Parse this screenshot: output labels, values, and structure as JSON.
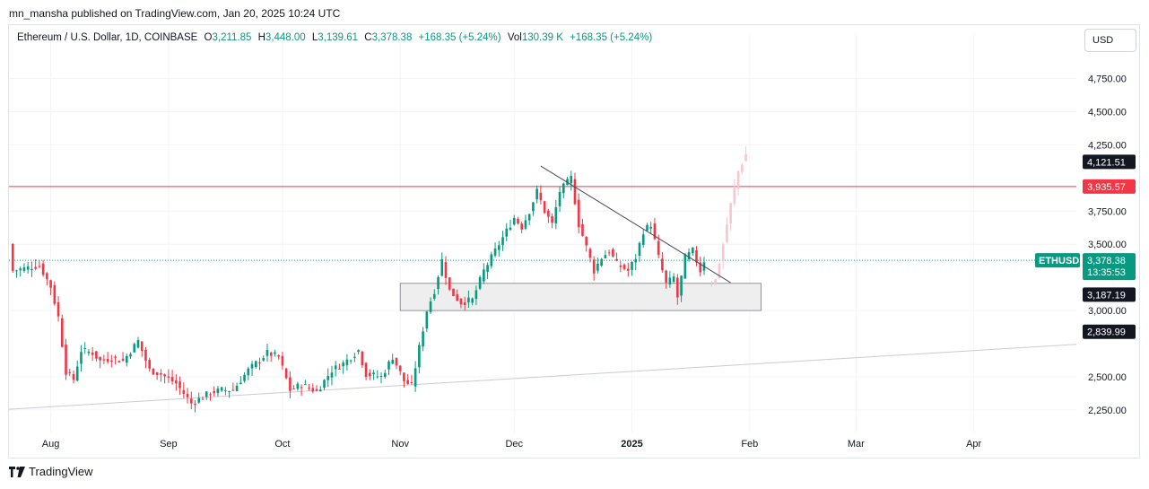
{
  "header": {
    "published": "mn_mansha published on TradingView.com, Jan 20, 2025 10:24 UTC"
  },
  "symbol": {
    "name": "Ethereum / U.S. Dollar, 1D, COINBASE",
    "open_label": "O",
    "open": "3,211.85",
    "high_label": "H",
    "high": "3,448.00",
    "low_label": "L",
    "low": "3,139.61",
    "close_label": "C",
    "close": "3,378.38",
    "change": "+168.35 (+5.24%)",
    "vol_label": "Vol",
    "vol": "130.39 K",
    "vol_change": "+168.35 (+5.24%)"
  },
  "currency": {
    "label": "USD"
  },
  "footer": {
    "brand": "TradingView"
  },
  "colors": {
    "up": "#089981",
    "down": "#f23645",
    "projection": "#f7c6d0",
    "resistance": "#f23645",
    "trendline": "#4a4e5a",
    "support_trend": "#c9ccd4",
    "zone_fill": "#eeeeee",
    "zone_border": "#787b86",
    "current_price": "#089981",
    "dark_label": "#131722"
  },
  "chart_data": {
    "type": "candlestick",
    "symbol": "ETHUSD",
    "x_axis": {
      "start": "2024-07-21",
      "end": "2025-04-28",
      "ticks": [
        {
          "date": "2024-08-01",
          "label": "Aug"
        },
        {
          "date": "2024-09-01",
          "label": "Sep"
        },
        {
          "date": "2024-10-01",
          "label": "Oct"
        },
        {
          "date": "2024-11-01",
          "label": "Nov"
        },
        {
          "date": "2024-12-01",
          "label": "Dec"
        },
        {
          "date": "2025-01-01",
          "label": "2025"
        },
        {
          "date": "2025-02-01",
          "label": "Feb"
        },
        {
          "date": "2025-03-01",
          "label": "Mar"
        },
        {
          "date": "2025-04-01",
          "label": "Apr"
        }
      ]
    },
    "y_axis": {
      "min": 2080,
      "max": 4950,
      "ticks": [
        {
          "value": 4750,
          "label": "4,750.00"
        },
        {
          "value": 4500,
          "label": "4,500.00"
        },
        {
          "value": 4250,
          "label": "4,250.00"
        },
        {
          "value": 3750,
          "label": "3,750.00"
        },
        {
          "value": 3500,
          "label": "3,500.00"
        },
        {
          "value": 3000,
          "label": "3,000.00"
        },
        {
          "value": 2500,
          "label": "2,500.00"
        },
        {
          "value": 2250,
          "label": "2,250.00"
        }
      ]
    },
    "price_labels": [
      {
        "value": 4121.51,
        "label": "4,121.51",
        "style": "dark"
      },
      {
        "value": 3935.57,
        "label": "3,935.57",
        "style": "red"
      },
      {
        "value": 3187.19,
        "label": "3,187.19",
        "style": "dark"
      },
      {
        "value": 2839.99,
        "label": "2,839.99",
        "style": "dark"
      }
    ],
    "current_price": {
      "value": 3378.38,
      "label": "3,378.38",
      "countdown": "13:35:53",
      "symbol_tag": "ETHUSD"
    },
    "resistance_line": {
      "value": 3935.57
    },
    "trendline": {
      "from": {
        "date": "2024-12-08",
        "value": 4090
      },
      "to": {
        "date": "2025-01-27",
        "value": 3210
      }
    },
    "support_trendline": {
      "from": {
        "date": "2024-07-21",
        "value": 2255
      },
      "to": {
        "date": "2025-04-28",
        "value": 2745
      }
    },
    "zone": {
      "from_date": "2024-11-01",
      "to_date": "2025-02-04",
      "top": 3205,
      "bottom": 3000
    },
    "close_path": [
      [
        "2024-07-21",
        3500
      ],
      [
        "2024-07-22",
        3300
      ],
      [
        "2024-07-27",
        3330
      ],
      [
        "2024-07-29",
        3340
      ],
      [
        "2024-08-01",
        3180
      ],
      [
        "2024-08-03",
        2950
      ],
      [
        "2024-08-05",
        2540
      ],
      [
        "2024-08-07",
        2480
      ],
      [
        "2024-08-09",
        2700
      ],
      [
        "2024-08-12",
        2680
      ],
      [
        "2024-08-14",
        2620
      ],
      [
        "2024-08-17",
        2640
      ],
      [
        "2024-08-20",
        2620
      ],
      [
        "2024-08-24",
        2770
      ],
      [
        "2024-08-27",
        2550
      ],
      [
        "2024-08-30",
        2520
      ],
      [
        "2024-09-03",
        2450
      ],
      [
        "2024-09-07",
        2300
      ],
      [
        "2024-09-12",
        2380
      ],
      [
        "2024-09-15",
        2400
      ],
      [
        "2024-09-18",
        2400
      ],
      [
        "2024-09-22",
        2550
      ],
      [
        "2024-09-27",
        2680
      ],
      [
        "2024-09-30",
        2650
      ],
      [
        "2024-10-03",
        2400
      ],
      [
        "2024-10-06",
        2440
      ],
      [
        "2024-10-10",
        2390
      ],
      [
        "2024-10-14",
        2550
      ],
      [
        "2024-10-17",
        2600
      ],
      [
        "2024-10-21",
        2700
      ],
      [
        "2024-10-23",
        2520
      ],
      [
        "2024-10-27",
        2500
      ],
      [
        "2024-10-30",
        2650
      ],
      [
        "2024-11-02",
        2470
      ],
      [
        "2024-11-04",
        2430
      ],
      [
        "2024-11-06",
        2720
      ],
      [
        "2024-11-08",
        3000
      ],
      [
        "2024-11-10",
        3150
      ],
      [
        "2024-11-12",
        3380
      ],
      [
        "2024-11-14",
        3150
      ],
      [
        "2024-11-17",
        3060
      ],
      [
        "2024-11-20",
        3080
      ],
      [
        "2024-11-23",
        3300
      ],
      [
        "2024-11-25",
        3400
      ],
      [
        "2024-11-27",
        3500
      ],
      [
        "2024-11-29",
        3600
      ],
      [
        "2024-12-01",
        3700
      ],
      [
        "2024-12-03",
        3630
      ],
      [
        "2024-12-05",
        3750
      ],
      [
        "2024-12-07",
        3900
      ],
      [
        "2024-12-09",
        3750
      ],
      [
        "2024-12-11",
        3650
      ],
      [
        "2024-12-13",
        3900
      ],
      [
        "2024-12-16",
        4000
      ],
      [
        "2024-12-18",
        3650
      ],
      [
        "2024-12-20",
        3480
      ],
      [
        "2024-12-22",
        3300
      ],
      [
        "2024-12-24",
        3400
      ],
      [
        "2024-12-26",
        3450
      ],
      [
        "2024-12-28",
        3350
      ],
      [
        "2024-12-31",
        3300
      ],
      [
        "2025-01-02",
        3400
      ],
      [
        "2025-01-04",
        3600
      ],
      [
        "2025-01-06",
        3650
      ],
      [
        "2025-01-08",
        3400
      ],
      [
        "2025-01-10",
        3200
      ],
      [
        "2025-01-12",
        3250
      ],
      [
        "2025-01-13",
        3100
      ],
      [
        "2025-01-15",
        3400
      ],
      [
        "2025-01-17",
        3450
      ],
      [
        "2025-01-19",
        3300
      ],
      [
        "2025-01-20",
        3378
      ]
    ],
    "projection_path": [
      [
        "2025-01-21",
        3200
      ],
      [
        "2025-01-23",
        3230
      ],
      [
        "2025-01-25",
        3500
      ],
      [
        "2025-01-27",
        3800
      ],
      [
        "2025-01-29",
        4050
      ],
      [
        "2025-01-31",
        4180
      ]
    ]
  }
}
